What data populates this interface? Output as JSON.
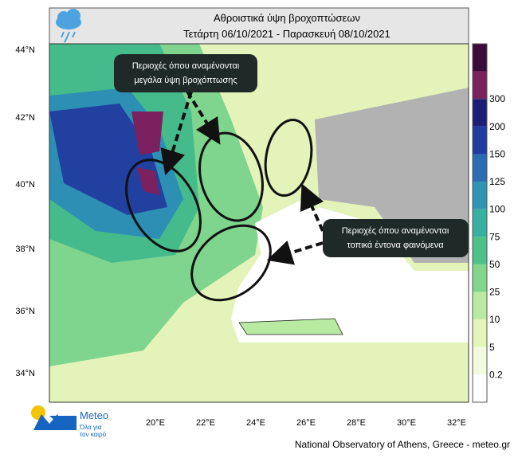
{
  "header": {
    "title_line1": "Αθροιστικά ύψη βροχοπτώσεων",
    "title_line2": "Τετάρτη 06/10/2021 - Παρασκευή 08/10/2021"
  },
  "map": {
    "lat_labels": [
      "44°N",
      "42°N",
      "40°N",
      "38°N",
      "36°N",
      "34°N"
    ],
    "lon_labels": [
      "20°E",
      "22°E",
      "24°E",
      "26°E",
      "28°E",
      "30°E",
      "32°E"
    ]
  },
  "colorbar": {
    "labels": [
      "300",
      "200",
      "150",
      "125",
      "100",
      "75",
      "50",
      "25",
      "10",
      "5",
      "0.2"
    ],
    "colors": [
      "#3a0b3b",
      "#7b2160",
      "#1b1f78",
      "#1f3c9e",
      "#2b6db2",
      "#2f95b4",
      "#38b09f",
      "#4cc18a",
      "#80d78c",
      "#b9eaa2",
      "#e4f5b9",
      "#f4fadf",
      "#ffffff"
    ]
  },
  "annotations": [
    {
      "line1": "Περιοχές όπου αναμένονται",
      "line2": "μεγάλα ύψη βροχόπτωσης"
    },
    {
      "line1": "Περιοχές όπου αναμένονται",
      "line2": "τοπικά έντονα φαινόμενα"
    }
  ],
  "logo": {
    "name": "Meteo",
    "tagline1": "Όλα για",
    "tagline2": "τον καιρό"
  },
  "footer": {
    "credit": "National Observatory of Athens, Greece - meteo.gr"
  }
}
